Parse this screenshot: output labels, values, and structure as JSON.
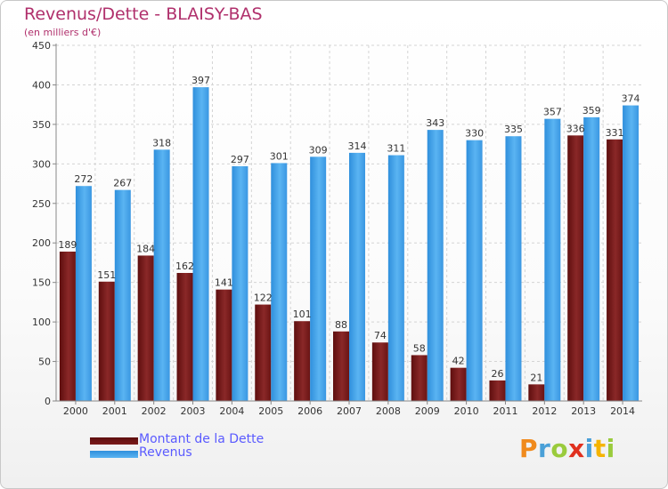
{
  "chart_data": {
    "type": "bar",
    "title": "Revenus/Dette - BLAISY-BAS",
    "subtitle": "(en milliers d'€)",
    "xlabel": "",
    "ylabel": "",
    "ylim": [
      0,
      450
    ],
    "yticks": [
      "0",
      "50",
      "100",
      "150",
      "200",
      "250",
      "300",
      "350",
      "400",
      "450"
    ],
    "grid": true,
    "categories": [
      "2000",
      "2001",
      "2002",
      "2003",
      "2004",
      "2005",
      "2006",
      "2007",
      "2008",
      "2009",
      "2010",
      "2011",
      "2012",
      "2013",
      "2014"
    ],
    "series": [
      {
        "name": "Montant de la Dette",
        "color": "#7a1a1a",
        "values": [
          189,
          151,
          184,
          162,
          141,
          122,
          101,
          88,
          74,
          58,
          42,
          26,
          21,
          336,
          331
        ],
        "labels": [
          "189",
          "151",
          "184",
          "162",
          "141",
          "122",
          "101",
          "88",
          "74",
          "58",
          "42",
          "26",
          "21",
          "336",
          "331"
        ]
      },
      {
        "name": "Revenus",
        "color": "#3d9be6",
        "values": [
          272,
          267,
          318,
          397,
          297,
          301,
          309,
          314,
          311,
          343,
          330,
          335,
          357,
          359,
          374
        ],
        "labels": [
          "272",
          "267",
          "318",
          "397",
          "297",
          "301",
          "309",
          "314",
          "311",
          "343",
          "330",
          "335",
          "357",
          "359",
          "374"
        ]
      }
    ],
    "legend": "bottom-left"
  },
  "logo": {
    "letters": [
      "P",
      "r",
      "o",
      "x",
      "i",
      "t",
      "i"
    ],
    "colors": [
      "#f08a1c",
      "#4aa0d8",
      "#9acb3c",
      "#e0301e",
      "#4aa0d8",
      "#f5b400",
      "#9acb3c"
    ]
  }
}
